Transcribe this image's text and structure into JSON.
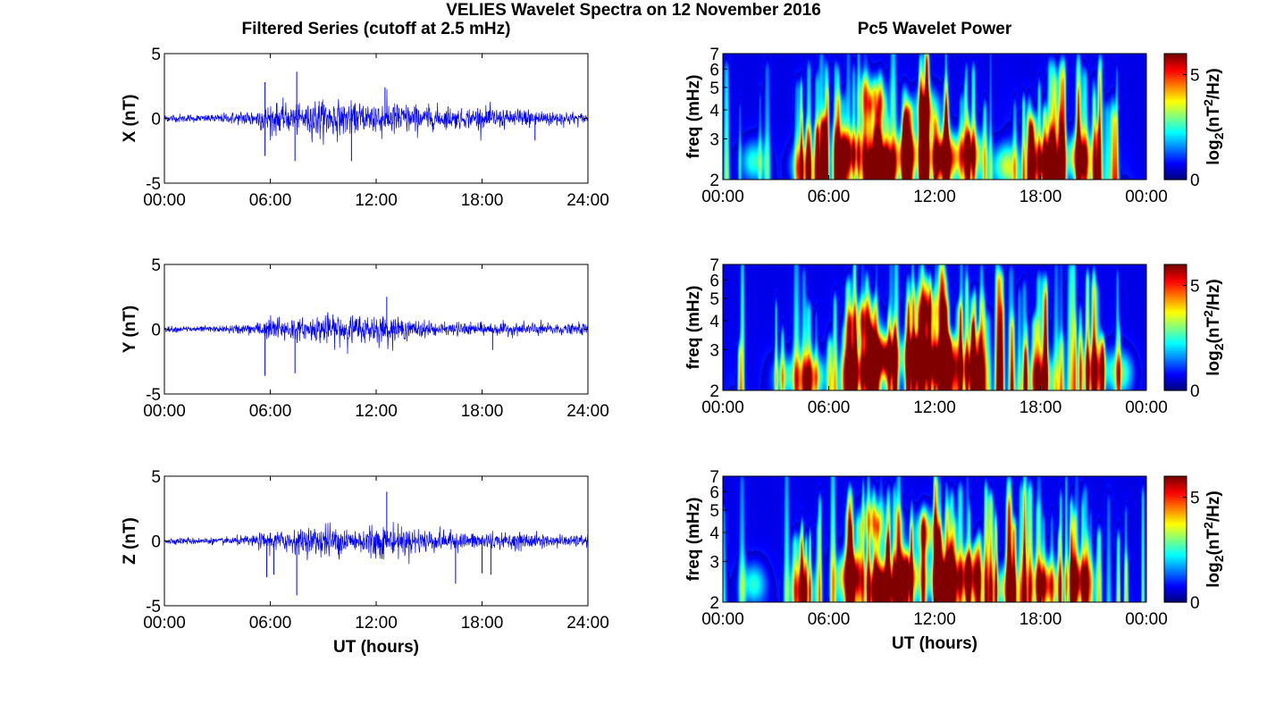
{
  "figure": {
    "title": "VELIES Wavelet Spectra on 12 November 2016",
    "left_title": "Filtered Series (cutoff at 2.5 mHz)",
    "right_title": "Pc5 Wavelet Power"
  },
  "chart_data": [
    {
      "type": "line",
      "component": "X",
      "ylabel": "X (nT)",
      "xlabel": "",
      "xlim": [
        0,
        24
      ],
      "ylim": [
        -5,
        5
      ],
      "x_ticks": [
        "00:00",
        "06:00",
        "12:00",
        "18:00",
        "24:00"
      ],
      "y_ticks": [
        "-5",
        "0",
        "5"
      ],
      "color": "#0000ff",
      "activity_envelope": {
        "hours": [
          0,
          3,
          5,
          6,
          7,
          8,
          9,
          10,
          11,
          12,
          13,
          14,
          15,
          16,
          17,
          18,
          19,
          20,
          21,
          22,
          23,
          24
        ],
        "amplitude_nT": [
          0.25,
          0.25,
          0.5,
          1.0,
          0.9,
          0.9,
          1.3,
          1.0,
          0.9,
          1.2,
          1.0,
          0.9,
          0.8,
          0.7,
          0.6,
          0.7,
          0.6,
          0.6,
          0.6,
          0.5,
          0.4,
          0.35
        ]
      },
      "spikes": [
        {
          "t": 5.7,
          "v": 2.8
        },
        {
          "t": 5.7,
          "v": -2.9
        },
        {
          "t": 7.5,
          "v": 3.6
        },
        {
          "t": 7.4,
          "v": -3.3
        },
        {
          "t": 10.6,
          "v": -3.3
        },
        {
          "t": 12.5,
          "v": 2.4
        },
        {
          "t": 21.0,
          "v": -1.7
        }
      ]
    },
    {
      "type": "line",
      "component": "Y",
      "ylabel": "Y (nT)",
      "xlabel": "",
      "xlim": [
        0,
        24
      ],
      "ylim": [
        -5,
        5
      ],
      "x_ticks": [
        "00:00",
        "06:00",
        "12:00",
        "18:00",
        "24:00"
      ],
      "y_ticks": [
        "-5",
        "0",
        "5"
      ],
      "color": "#0000ff",
      "activity_envelope": {
        "hours": [
          0,
          3,
          5,
          6,
          7,
          8,
          9,
          10,
          11,
          12,
          13,
          14,
          15,
          16,
          17,
          18,
          19,
          20,
          21,
          22,
          23,
          24
        ],
        "amplitude_nT": [
          0.2,
          0.2,
          0.35,
          0.8,
          0.8,
          0.6,
          0.9,
          1.0,
          0.9,
          0.9,
          0.8,
          0.6,
          0.5,
          0.45,
          0.4,
          0.45,
          0.4,
          0.4,
          0.4,
          0.35,
          0.35,
          0.4
        ]
      },
      "spikes": [
        {
          "t": 5.7,
          "v": -3.6
        },
        {
          "t": 7.4,
          "v": -3.4
        },
        {
          "t": 12.6,
          "v": 2.5
        },
        {
          "t": 18.6,
          "v": -1.6
        }
      ]
    },
    {
      "type": "line",
      "component": "Z",
      "ylabel": "Z (nT)",
      "xlabel": "UT (hours)",
      "xlim": [
        0,
        24
      ],
      "ylim": [
        -5,
        5
      ],
      "x_ticks": [
        "00:00",
        "06:00",
        "12:00",
        "18:00",
        "24:00"
      ],
      "y_ticks": [
        "-5",
        "0",
        "5"
      ],
      "color": "#0000ff",
      "activity_envelope": {
        "hours": [
          0,
          3,
          5,
          6,
          7,
          8,
          9,
          10,
          11,
          12,
          13,
          14,
          15,
          16,
          17,
          18,
          19,
          20,
          21,
          22,
          23,
          24
        ],
        "amplitude_nT": [
          0.2,
          0.2,
          0.35,
          0.7,
          0.7,
          0.7,
          1.1,
          0.9,
          0.8,
          1.2,
          1.0,
          0.8,
          0.7,
          0.6,
          0.5,
          0.6,
          0.5,
          0.5,
          0.5,
          0.4,
          0.35,
          0.35
        ]
      },
      "spikes": [
        {
          "t": 5.8,
          "v": -2.8
        },
        {
          "t": 6.2,
          "v": -2.6
        },
        {
          "t": 7.5,
          "v": -4.2
        },
        {
          "t": 12.6,
          "v": 3.8
        },
        {
          "t": 16.5,
          "v": -3.3
        },
        {
          "t": 18.0,
          "v": -2.5
        },
        {
          "t": 18.5,
          "v": -2.6
        }
      ]
    },
    {
      "type": "heatmap",
      "component": "X",
      "ylabel": "freq (mHz)",
      "xlabel": "",
      "xlim": [
        0,
        24
      ],
      "ylim": [
        2,
        7
      ],
      "yscale": "log",
      "x_ticks": [
        "00:00",
        "06:00",
        "12:00",
        "18:00",
        "00:00"
      ],
      "y_ticks": [
        "2",
        "3",
        "4",
        "5",
        "6",
        "7"
      ],
      "colorbar": {
        "label": "log2(nT2/Hz)",
        "ticks": [
          "0",
          "5"
        ],
        "range": [
          0,
          6
        ],
        "colormap": "jet"
      },
      "hotspots": [
        {
          "t": 9.0,
          "f": 2.3,
          "p": 6.5
        },
        {
          "t": 12.5,
          "f": 2.5,
          "p": 6.5
        },
        {
          "t": 7.2,
          "f": 2.6,
          "p": 4.8
        },
        {
          "t": 10.5,
          "f": 2.6,
          "p": 4.5
        },
        {
          "t": 18.2,
          "f": 2.4,
          "p": 4.8
        },
        {
          "t": 20.2,
          "f": 2.5,
          "p": 4.5
        },
        {
          "t": 14.0,
          "f": 2.6,
          "p": 4.0
        },
        {
          "t": 16.0,
          "f": 2.3,
          "p": 3.2
        },
        {
          "t": 4.5,
          "f": 2.3,
          "p": 2.8
        },
        {
          "t": 1.7,
          "f": 2.4,
          "p": 2.5
        },
        {
          "t": 11.5,
          "f": 4.0,
          "p": 3.5
        },
        {
          "t": 8.5,
          "f": 4.5,
          "p": 3.2
        }
      ]
    },
    {
      "type": "heatmap",
      "component": "Y",
      "ylabel": "freq (mHz)",
      "xlabel": "",
      "xlim": [
        0,
        24
      ],
      "ylim": [
        2,
        7
      ],
      "yscale": "log",
      "x_ticks": [
        "00:00",
        "06:00",
        "12:00",
        "18:00",
        "00:00"
      ],
      "y_ticks": [
        "2",
        "3",
        "4",
        "5",
        "6",
        "7"
      ],
      "colorbar": {
        "label": "log2(nT2/Hz)",
        "ticks": [
          "0",
          "5"
        ],
        "range": [
          0,
          6
        ],
        "colormap": "jet"
      },
      "hotspots": [
        {
          "t": 9.0,
          "f": 2.8,
          "p": 6.5
        },
        {
          "t": 11.0,
          "f": 2.8,
          "p": 6.0
        },
        {
          "t": 12.4,
          "f": 2.6,
          "p": 6.0
        },
        {
          "t": 7.5,
          "f": 2.4,
          "p": 4.5
        },
        {
          "t": 5.0,
          "f": 2.3,
          "p": 4.0
        },
        {
          "t": 14.0,
          "f": 2.5,
          "p": 3.5
        },
        {
          "t": 18.0,
          "f": 2.3,
          "p": 3.0
        },
        {
          "t": 21.0,
          "f": 2.5,
          "p": 3.0
        },
        {
          "t": 11.5,
          "f": 4.5,
          "p": 4.0
        },
        {
          "t": 8.0,
          "f": 4.0,
          "p": 3.5
        },
        {
          "t": 22.5,
          "f": 2.4,
          "p": 2.8
        },
        {
          "t": 3.5,
          "f": 2.3,
          "p": 2.5
        }
      ]
    },
    {
      "type": "heatmap",
      "component": "Z",
      "ylabel": "freq (mHz)",
      "xlabel": "UT (hours)",
      "xlim": [
        0,
        24
      ],
      "ylim": [
        2,
        7
      ],
      "yscale": "log",
      "x_ticks": [
        "00:00",
        "06:00",
        "12:00",
        "18:00",
        "00:00"
      ],
      "y_ticks": [
        "2",
        "3",
        "4",
        "5",
        "6",
        "7"
      ],
      "colorbar": {
        "label": "log2(nT2/Hz)",
        "ticks": [
          "0",
          "5"
        ],
        "range": [
          0,
          6
        ],
        "colormap": "jet"
      },
      "hotspots": [
        {
          "t": 9.0,
          "f": 2.3,
          "p": 6.5
        },
        {
          "t": 12.5,
          "f": 2.5,
          "p": 6.5
        },
        {
          "t": 7.2,
          "f": 2.6,
          "p": 4.8
        },
        {
          "t": 10.5,
          "f": 2.6,
          "p": 4.5
        },
        {
          "t": 18.2,
          "f": 2.4,
          "p": 4.8
        },
        {
          "t": 20.2,
          "f": 2.5,
          "p": 4.5
        },
        {
          "t": 14.0,
          "f": 2.6,
          "p": 4.0
        },
        {
          "t": 16.0,
          "f": 2.3,
          "p": 3.2
        },
        {
          "t": 4.5,
          "f": 2.3,
          "p": 2.8
        },
        {
          "t": 1.7,
          "f": 2.4,
          "p": 2.5
        },
        {
          "t": 11.5,
          "f": 4.0,
          "p": 3.5
        },
        {
          "t": 8.5,
          "f": 4.5,
          "p": 3.2
        }
      ]
    }
  ]
}
